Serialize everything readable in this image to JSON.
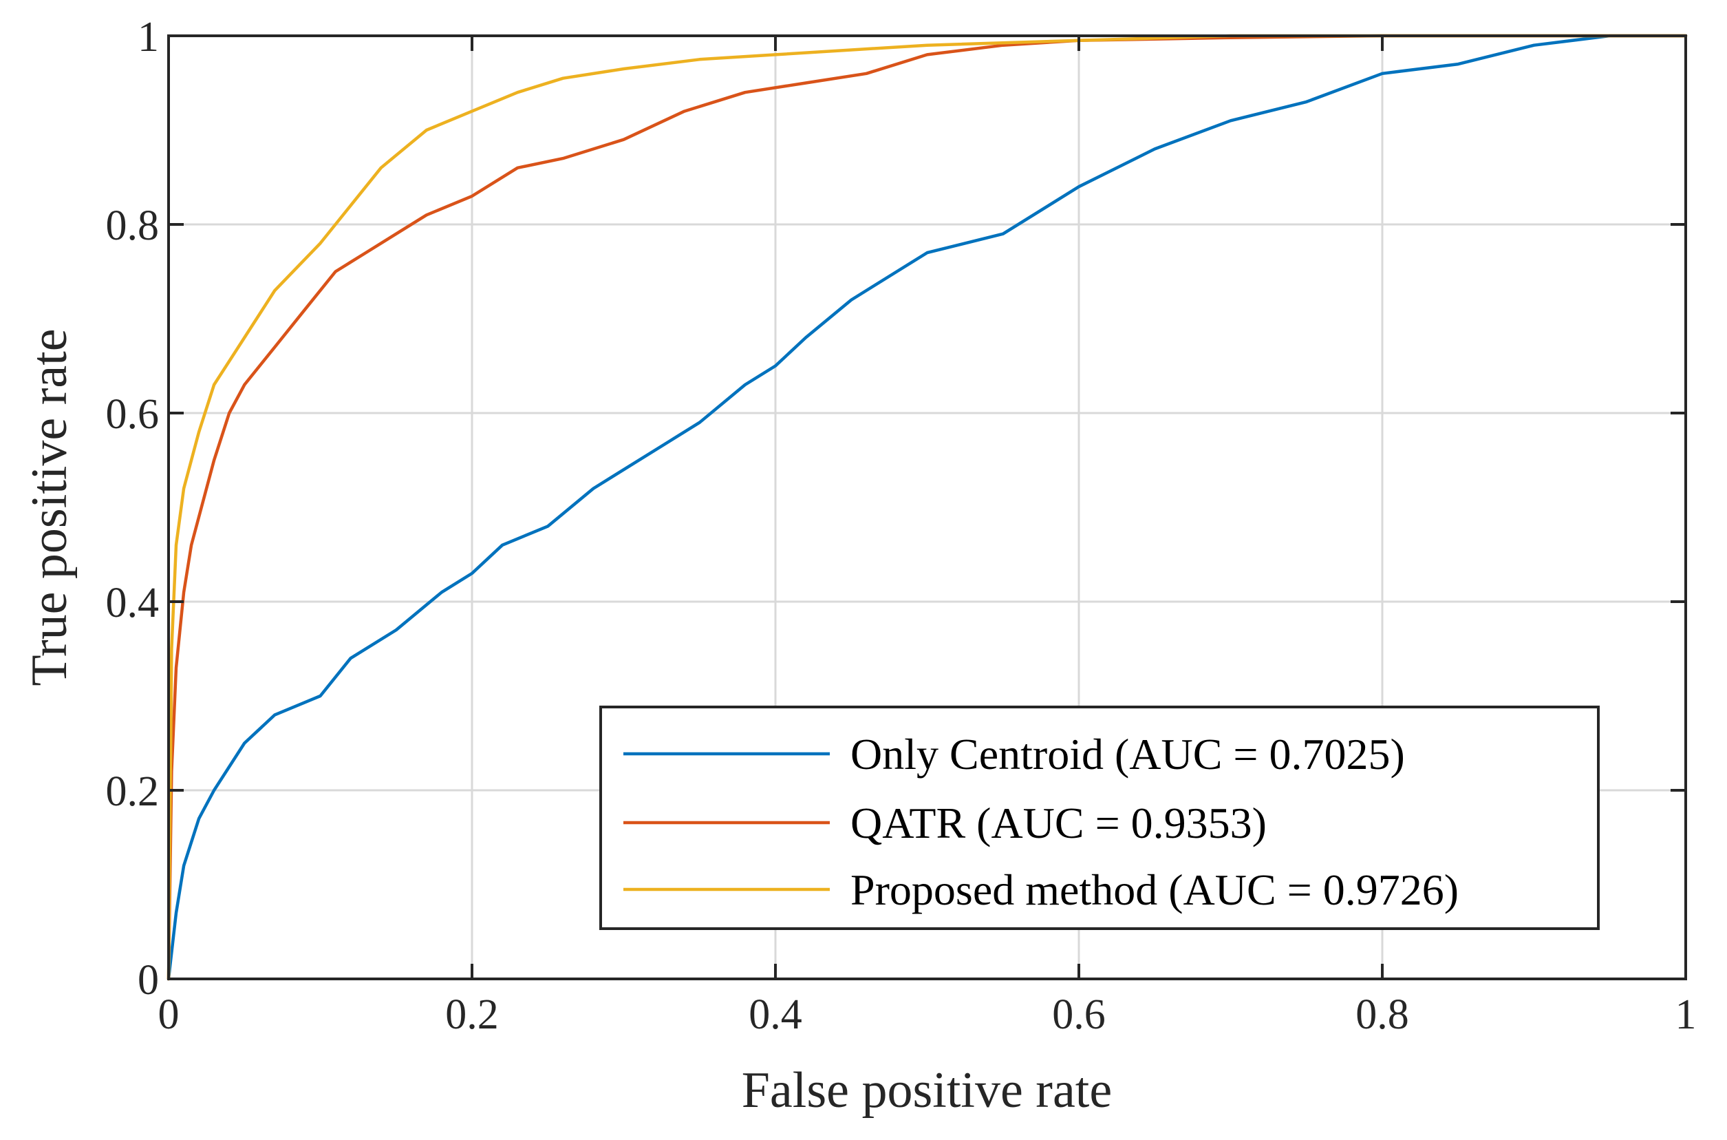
{
  "chart_data": {
    "type": "line",
    "title": "",
    "xlabel": "False positive rate",
    "ylabel": "True positive rate",
    "xlim": [
      0,
      1
    ],
    "ylim": [
      0,
      1
    ],
    "grid": true,
    "legend_position": "bottom-right",
    "x_ticks": [
      0,
      0.2,
      0.4,
      0.6,
      0.8,
      1
    ],
    "y_ticks": [
      0,
      0.2,
      0.4,
      0.6,
      0.8,
      1
    ],
    "x_tick_labels": [
      "0",
      "0.2",
      "0.4",
      "0.6",
      "0.8",
      "1"
    ],
    "y_tick_labels": [
      "0",
      "0.2",
      "0.4",
      "0.6",
      "0.8",
      "1"
    ],
    "series": [
      {
        "name": "Only Centroid (AUC = 0.7025)",
        "color": "#0072BD",
        "x": [
          0,
          0.005,
          0.01,
          0.02,
          0.03,
          0.05,
          0.07,
          0.1,
          0.12,
          0.15,
          0.18,
          0.2,
          0.22,
          0.25,
          0.28,
          0.3,
          0.33,
          0.35,
          0.38,
          0.4,
          0.42,
          0.45,
          0.48,
          0.5,
          0.55,
          0.6,
          0.65,
          0.7,
          0.75,
          0.8,
          0.85,
          0.9,
          0.95,
          1
        ],
        "y": [
          0,
          0.07,
          0.12,
          0.17,
          0.2,
          0.25,
          0.28,
          0.3,
          0.34,
          0.37,
          0.41,
          0.43,
          0.46,
          0.48,
          0.52,
          0.54,
          0.57,
          0.59,
          0.63,
          0.65,
          0.68,
          0.72,
          0.75,
          0.77,
          0.79,
          0.84,
          0.88,
          0.91,
          0.93,
          0.96,
          0.97,
          0.99,
          1,
          1
        ]
      },
      {
        "name": "QATR (AUC = 0.9353)",
        "color": "#D95319",
        "x": [
          0,
          0.002,
          0.005,
          0.01,
          0.015,
          0.02,
          0.03,
          0.04,
          0.05,
          0.07,
          0.09,
          0.11,
          0.13,
          0.15,
          0.17,
          0.2,
          0.23,
          0.26,
          0.3,
          0.34,
          0.38,
          0.42,
          0.46,
          0.5,
          0.55,
          0.6,
          0.7,
          0.8,
          0.9,
          1
        ],
        "y": [
          0,
          0.22,
          0.33,
          0.41,
          0.46,
          0.49,
          0.55,
          0.6,
          0.63,
          0.67,
          0.71,
          0.75,
          0.77,
          0.79,
          0.81,
          0.83,
          0.86,
          0.87,
          0.89,
          0.92,
          0.94,
          0.95,
          0.96,
          0.98,
          0.99,
          0.995,
          0.998,
          1,
          1,
          1
        ]
      },
      {
        "name": "Proposed method (AUC = 0.9726)",
        "color": "#EDB120",
        "x": [
          0,
          0.002,
          0.005,
          0.01,
          0.02,
          0.03,
          0.05,
          0.07,
          0.1,
          0.12,
          0.14,
          0.17,
          0.2,
          0.23,
          0.26,
          0.3,
          0.35,
          0.4,
          0.45,
          0.5,
          0.6,
          0.7,
          0.8,
          0.9,
          1
        ],
        "y": [
          0,
          0.35,
          0.46,
          0.52,
          0.58,
          0.63,
          0.68,
          0.73,
          0.78,
          0.82,
          0.86,
          0.9,
          0.92,
          0.94,
          0.955,
          0.965,
          0.975,
          0.98,
          0.985,
          0.99,
          0.995,
          1,
          1,
          1,
          1
        ]
      }
    ]
  }
}
